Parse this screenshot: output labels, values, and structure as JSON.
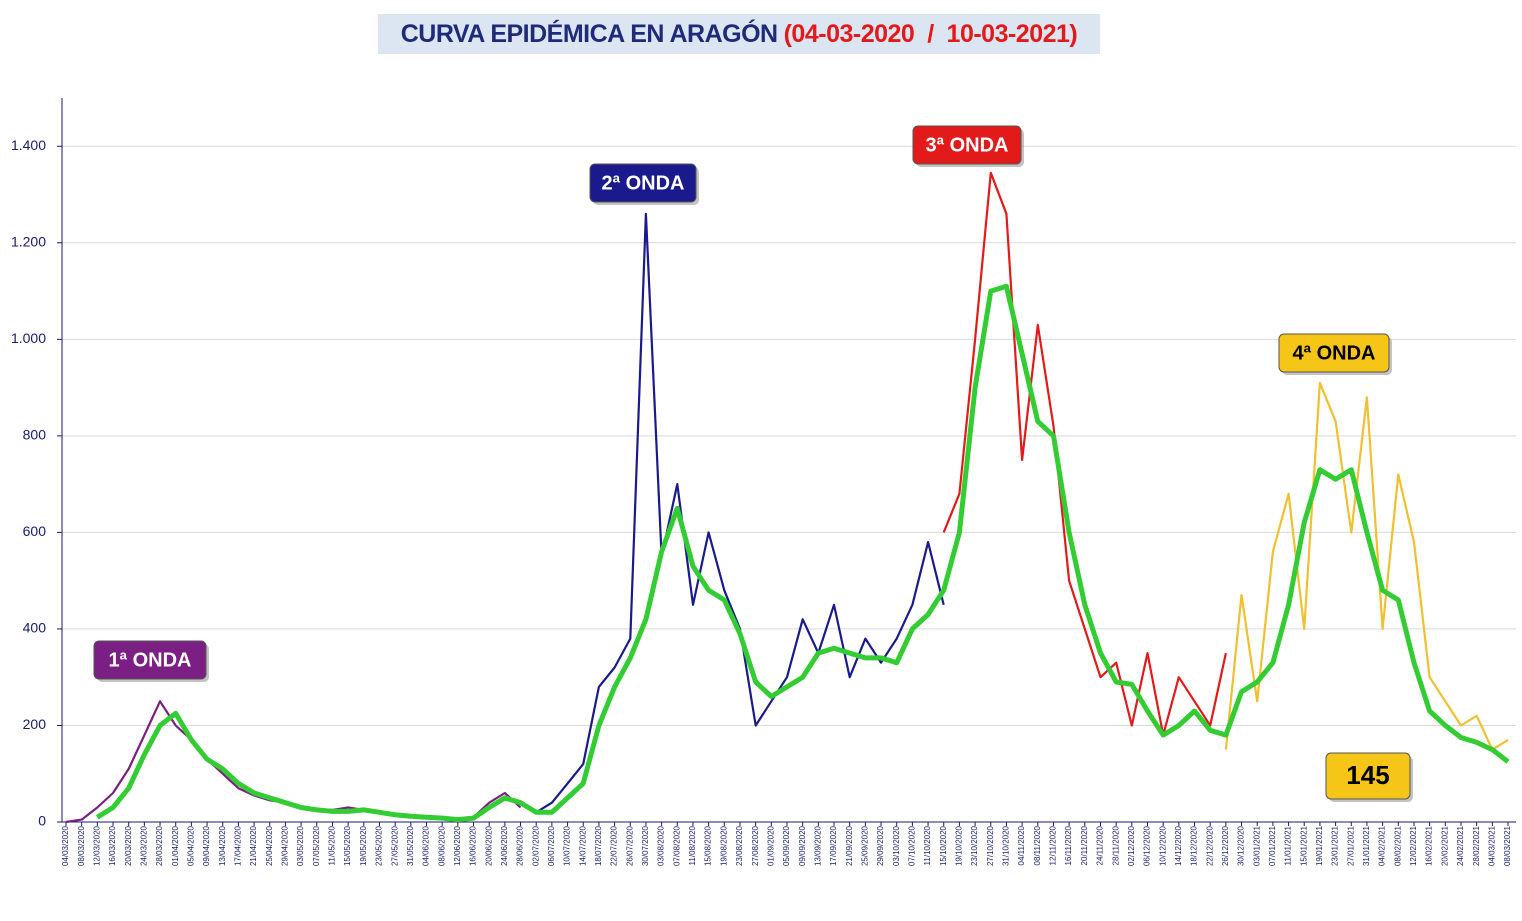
{
  "chart_data": {
    "type": "line",
    "title": "CURVA EPIDÉMICA EN ARAGÓN",
    "subtitle": "(04-03-2020  /  10-03-2021)",
    "categories": [
      "04/03/2020",
      "08/03/2020",
      "12/03/2020",
      "16/03/2020",
      "20/03/2020",
      "24/03/2020",
      "28/03/2020",
      "01/04/2020",
      "05/04/2020",
      "09/04/2020",
      "13/04/2020",
      "17/04/2020",
      "21/04/2020",
      "25/04/2020",
      "29/04/2020",
      "03/05/2020",
      "07/05/2020",
      "11/05/2020",
      "15/05/2020",
      "19/05/2020",
      "23/05/2020",
      "27/05/2020",
      "31/05/2020",
      "04/06/2020",
      "08/06/2020",
      "12/06/2020",
      "16/06/2020",
      "20/06/2020",
      "24/06/2020",
      "28/06/2020",
      "02/07/2020",
      "06/07/2020",
      "10/07/2020",
      "14/07/2020",
      "18/07/2020",
      "22/07/2020",
      "26/07/2020",
      "30/07/2020",
      "03/08/2020",
      "07/08/2020",
      "11/08/2020",
      "15/08/2020",
      "19/08/2020",
      "23/08/2020",
      "27/08/2020",
      "01/09/2020",
      "05/09/2020",
      "09/09/2020",
      "13/09/2020",
      "17/09/2020",
      "21/09/2020",
      "25/09/2020",
      "29/09/2020",
      "03/10/2020",
      "07/10/2020",
      "11/10/2020",
      "15/10/2020",
      "19/10/2020",
      "23/10/2020",
      "27/10/2020",
      "31/10/2020",
      "04/11/2020",
      "08/11/2020",
      "12/11/2020",
      "16/11/2020",
      "20/11/2020",
      "24/11/2020",
      "28/11/2020",
      "02/12/2020",
      "06/12/2020",
      "10/12/2020",
      "14/12/2020",
      "18/12/2020",
      "22/12/2020",
      "26/12/2020",
      "30/12/2020",
      "03/01/2021",
      "07/01/2021",
      "11/01/2021",
      "15/01/2021",
      "19/01/2021",
      "23/01/2021",
      "27/01/2021",
      "31/01/2021",
      "04/02/2021",
      "08/02/2021",
      "12/02/2021",
      "16/02/2021",
      "20/02/2021",
      "24/02/2021",
      "28/02/2021",
      "04/03/2021",
      "08/03/2021"
    ],
    "series": [
      {
        "name": "1ª ONDA",
        "color": "#7b1f85",
        "values": [
          0,
          5,
          30,
          60,
          110,
          180,
          250,
          200,
          170,
          130,
          100,
          70,
          55,
          45,
          40,
          30,
          25,
          25,
          30,
          25,
          20,
          15,
          12,
          10,
          8,
          5,
          10,
          40,
          60,
          30,
          null,
          null,
          null,
          null,
          null,
          null,
          null,
          null,
          null,
          null,
          null,
          null,
          null,
          null,
          null,
          null,
          null,
          null,
          null,
          null,
          null,
          null,
          null,
          null,
          null,
          null,
          null,
          null,
          null,
          null,
          null,
          null,
          null,
          null,
          null,
          null,
          null,
          null,
          null,
          null,
          null,
          null,
          null,
          null,
          null,
          null,
          null,
          null,
          null,
          null,
          null,
          null,
          null,
          null,
          null,
          null,
          null,
          null,
          null,
          null,
          null,
          null,
          null
        ]
      },
      {
        "name": "2ª ONDA",
        "color": "#1a1a8c",
        "values": [
          null,
          null,
          null,
          null,
          null,
          null,
          null,
          null,
          null,
          null,
          null,
          null,
          null,
          null,
          null,
          null,
          null,
          null,
          null,
          null,
          null,
          null,
          null,
          null,
          null,
          null,
          null,
          null,
          null,
          null,
          20,
          40,
          80,
          120,
          280,
          320,
          380,
          1260,
          550,
          700,
          450,
          600,
          480,
          400,
          200,
          250,
          300,
          420,
          350,
          450,
          300,
          380,
          330,
          380,
          450,
          580,
          450,
          null,
          null,
          null,
          null,
          null,
          null,
          null,
          null,
          null,
          null,
          null,
          null,
          null,
          null,
          null,
          null,
          null,
          null,
          null,
          null,
          null,
          null,
          null,
          null,
          null,
          null,
          null,
          null,
          null,
          null,
          null,
          null,
          null,
          null,
          null,
          null
        ]
      },
      {
        "name": "3ª ONDA",
        "color": "#e31a1a",
        "values": [
          null,
          null,
          null,
          null,
          null,
          null,
          null,
          null,
          null,
          null,
          null,
          null,
          null,
          null,
          null,
          null,
          null,
          null,
          null,
          null,
          null,
          null,
          null,
          null,
          null,
          null,
          null,
          null,
          null,
          null,
          null,
          null,
          null,
          null,
          null,
          null,
          null,
          null,
          null,
          null,
          null,
          null,
          null,
          null,
          null,
          null,
          null,
          null,
          null,
          null,
          null,
          null,
          null,
          null,
          null,
          null,
          600,
          680,
          1000,
          1345,
          1260,
          750,
          1030,
          820,
          500,
          400,
          300,
          330,
          200,
          350,
          180,
          300,
          250,
          200,
          350,
          null,
          null,
          null,
          null,
          null,
          null,
          null,
          null,
          null,
          null,
          null,
          null,
          null,
          null,
          null,
          null,
          null,
          null
        ]
      },
      {
        "name": "4ª ONDA",
        "color": "#f0c030",
        "values": [
          null,
          null,
          null,
          null,
          null,
          null,
          null,
          null,
          null,
          null,
          null,
          null,
          null,
          null,
          null,
          null,
          null,
          null,
          null,
          null,
          null,
          null,
          null,
          null,
          null,
          null,
          null,
          null,
          null,
          null,
          null,
          null,
          null,
          null,
          null,
          null,
          null,
          null,
          null,
          null,
          null,
          null,
          null,
          null,
          null,
          null,
          null,
          null,
          null,
          null,
          null,
          null,
          null,
          null,
          null,
          null,
          null,
          null,
          null,
          null,
          null,
          null,
          null,
          null,
          null,
          null,
          null,
          null,
          null,
          null,
          null,
          null,
          null,
          null,
          150,
          470,
          250,
          560,
          680,
          400,
          910,
          830,
          600,
          880,
          400,
          720,
          580,
          300,
          250,
          200,
          220,
          150,
          170
        ]
      },
      {
        "color": "#33cc33",
        "values": [
          null,
          null,
          10,
          30,
          70,
          140,
          200,
          225,
          170,
          130,
          110,
          80,
          60,
          50,
          40,
          30,
          25,
          22,
          22,
          25,
          20,
          15,
          12,
          10,
          8,
          5,
          8,
          30,
          50,
          40,
          20,
          20,
          50,
          80,
          200,
          280,
          340,
          420,
          560,
          650,
          530,
          480,
          460,
          390,
          290,
          260,
          280,
          300,
          350,
          360,
          350,
          340,
          340,
          330,
          400,
          430,
          480,
          600,
          900,
          1100,
          1110,
          970,
          830,
          800,
          600,
          450,
          350,
          290,
          285,
          230,
          180,
          200,
          230,
          190,
          180,
          270,
          290,
          330,
          450,
          620,
          730,
          710,
          730,
          600,
          480,
          460,
          330,
          230,
          200,
          175,
          165,
          150,
          125
        ]
      }
    ],
    "annotations": [
      "1ª ONDA",
      "2ª ONDA",
      "3ª ONDA",
      "4ª ONDA",
      "145"
    ],
    "ylim": [
      0,
      1500
    ],
    "yticks": [
      0,
      200,
      400,
      600,
      800,
      {
        "value": 1000,
        "label": "1.000"
      },
      {
        "value": 1200,
        "label": "1.200"
      },
      {
        "value": 1400,
        "label": "1.400"
      }
    ],
    "grid": true
  }
}
